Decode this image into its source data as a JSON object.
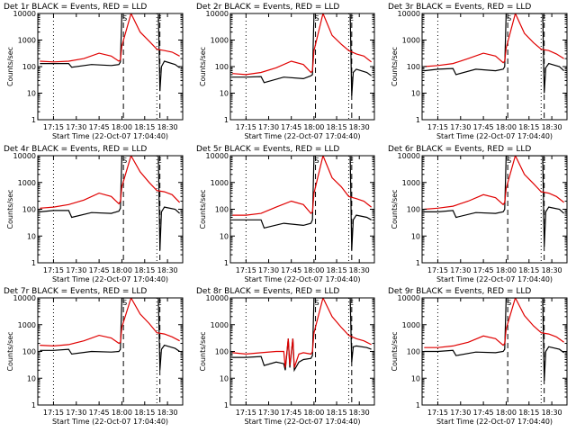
{
  "common": {
    "ylabel": "Counts/sec",
    "xlabel": "Start Time (22-Oct-07 17:04:40)",
    "yticks": [
      "1",
      "10",
      "100",
      "1000",
      "10000"
    ],
    "xticks": [
      "17:15",
      "17:30",
      "17:45",
      "18:00",
      "18:15",
      "18:30"
    ],
    "marker_S": "S",
    "marker_E": "E",
    "colors": {
      "events": "#000000",
      "lld": "#e00000",
      "frame": "#000000",
      "background": "#ffffff"
    }
  },
  "chart_data": [
    {
      "type": "line",
      "title": "Det 1r BLACK = Events, RED = LLD",
      "xlabel": "Start Time (22-Oct-07 17:04:40)",
      "ylabel": "Counts/sec",
      "ylim": [
        1,
        10000
      ],
      "yscale": "log",
      "xlim": [
        "17:04:40",
        "18:40"
      ],
      "markers": {
        "dotted": [
          "17:15",
          "18:23"
        ],
        "dashed": [
          "18:01",
          "18:25"
        ],
        "S": "18:01",
        "E": "18:25"
      },
      "series": [
        {
          "name": "Events",
          "x": [
            "17:06",
            "17:15",
            "17:25",
            "17:27",
            "17:40",
            "17:53",
            "17:58",
            "17:59",
            "18:00",
            "18:24",
            "18:25",
            "18:26",
            "18:28",
            "18:35",
            "18:38"
          ],
          "y": [
            130,
            130,
            130,
            95,
            120,
            110,
            120,
            150,
            10000,
            10000,
            12,
            100,
            160,
            120,
            90
          ]
        },
        {
          "name": "LLD",
          "x": [
            "17:06",
            "17:15",
            "17:25",
            "17:35",
            "17:45",
            "17:53",
            "17:58",
            "17:59",
            "18:00",
            "18:06",
            "18:12",
            "18:18",
            "18:23",
            "18:28",
            "18:33",
            "18:38"
          ],
          "y": [
            160,
            150,
            160,
            200,
            320,
            250,
            160,
            180,
            600,
            10000,
            2000,
            900,
            450,
            400,
            350,
            250
          ]
        }
      ]
    },
    {
      "type": "line",
      "title": "Det 2r BLACK = Events, RED = LLD",
      "xlabel": "Start Time (22-Oct-07 17:04:40)",
      "ylabel": "Counts/sec",
      "ylim": [
        1,
        10000
      ],
      "yscale": "log",
      "xlim": [
        "17:04:40",
        "18:40"
      ],
      "markers": {
        "dotted": [
          "17:15",
          "18:23"
        ],
        "dashed": [
          "18:01",
          "18:25"
        ],
        "S": "18:01",
        "E": "18:25"
      },
      "series": [
        {
          "name": "Events",
          "x": [
            "17:06",
            "17:15",
            "17:25",
            "17:27",
            "17:40",
            "17:53",
            "17:58",
            "17:59",
            "18:00",
            "18:24",
            "18:25",
            "18:26",
            "18:28",
            "18:35",
            "18:38"
          ],
          "y": [
            40,
            40,
            42,
            25,
            40,
            35,
            45,
            50,
            10000,
            10000,
            8,
            60,
            80,
            60,
            45
          ]
        },
        {
          "name": "LLD",
          "x": [
            "17:06",
            "17:15",
            "17:25",
            "17:35",
            "17:45",
            "17:53",
            "17:58",
            "17:59",
            "18:00",
            "18:06",
            "18:12",
            "18:18",
            "18:23",
            "18:28",
            "18:33",
            "18:38"
          ],
          "y": [
            55,
            50,
            60,
            90,
            160,
            120,
            60,
            70,
            400,
            10000,
            1500,
            700,
            400,
            300,
            250,
            150
          ]
        }
      ]
    },
    {
      "type": "line",
      "title": "Det 3r BLACK = Events, RED = LLD",
      "xlabel": "Start Time (22-Oct-07 17:04:40)",
      "ylabel": "Counts/sec",
      "ylim": [
        1,
        10000
      ],
      "yscale": "log",
      "xlim": [
        "17:04:40",
        "18:40"
      ],
      "markers": {
        "dotted": [
          "17:15",
          "18:23"
        ],
        "dashed": [
          "18:01",
          "18:25"
        ],
        "S": "18:01",
        "E": "18:25"
      },
      "series": [
        {
          "name": "Events",
          "x": [
            "17:06",
            "17:15",
            "17:25",
            "17:27",
            "17:40",
            "17:53",
            "17:58",
            "17:59",
            "18:00",
            "18:24",
            "18:25",
            "18:26",
            "18:28",
            "18:35",
            "18:38"
          ],
          "y": [
            70,
            80,
            85,
            50,
            80,
            70,
            80,
            100,
            10000,
            10000,
            10,
            90,
            130,
            100,
            70
          ]
        },
        {
          "name": "LLD",
          "x": [
            "17:06",
            "17:15",
            "17:25",
            "17:35",
            "17:45",
            "17:53",
            "17:58",
            "17:59",
            "18:00",
            "18:06",
            "18:12",
            "18:18",
            "18:23",
            "18:28",
            "18:33",
            "18:38"
          ],
          "y": [
            100,
            110,
            130,
            200,
            320,
            250,
            140,
            160,
            500,
            10000,
            1800,
            800,
            450,
            400,
            300,
            200
          ]
        }
      ]
    },
    {
      "type": "line",
      "title": "Det 4r BLACK = Events, RED = LLD",
      "xlabel": "Start Time (22-Oct-07 17:04:40)",
      "ylabel": "Counts/sec",
      "ylim": [
        1,
        10000
      ],
      "yscale": "log",
      "xlim": [
        "17:04:40",
        "18:40"
      ],
      "markers": {
        "dotted": [
          "17:15",
          "18:23"
        ],
        "dashed": [
          "18:01",
          "18:25"
        ],
        "S": "18:01",
        "E": "18:25"
      },
      "series": [
        {
          "name": "Events",
          "x": [
            "17:06",
            "17:15",
            "17:25",
            "17:27",
            "17:40",
            "17:53",
            "17:58",
            "17:59",
            "18:00",
            "18:24",
            "18:25",
            "18:26",
            "18:28",
            "18:35",
            "18:38"
          ],
          "y": [
            80,
            90,
            90,
            50,
            75,
            70,
            85,
            110,
            10000,
            10000,
            3,
            80,
            120,
            100,
            70
          ]
        },
        {
          "name": "LLD",
          "x": [
            "17:06",
            "17:15",
            "17:25",
            "17:35",
            "17:45",
            "17:53",
            "17:58",
            "17:59",
            "18:00",
            "18:06",
            "18:12",
            "18:18",
            "18:23",
            "18:28",
            "18:33",
            "18:38"
          ],
          "y": [
            110,
            120,
            150,
            220,
            400,
            300,
            160,
            200,
            700,
            10000,
            2500,
            1000,
            500,
            450,
            350,
            180
          ]
        }
      ]
    },
    {
      "type": "line",
      "title": "Det 5r BLACK = Events, RED = LLD",
      "xlabel": "Start Time (22-Oct-07 17:04:40)",
      "ylabel": "Counts/sec",
      "ylim": [
        1,
        10000
      ],
      "yscale": "log",
      "xlim": [
        "17:04:40",
        "18:40"
      ],
      "markers": {
        "dotted": [
          "17:15",
          "18:23"
        ],
        "dashed": [
          "18:01",
          "18:25"
        ],
        "S": "18:01",
        "E": "18:25"
      },
      "series": [
        {
          "name": "Events",
          "x": [
            "17:06",
            "17:15",
            "17:25",
            "17:27",
            "17:40",
            "17:53",
            "17:58",
            "17:59",
            "18:00",
            "18:24",
            "18:25",
            "18:26",
            "18:28",
            "18:35",
            "18:38"
          ],
          "y": [
            40,
            40,
            40,
            20,
            30,
            25,
            30,
            40,
            10000,
            10000,
            3,
            40,
            60,
            50,
            40
          ]
        },
        {
          "name": "LLD",
          "x": [
            "17:06",
            "17:15",
            "17:25",
            "17:35",
            "17:45",
            "17:53",
            "17:58",
            "17:59",
            "18:00",
            "18:06",
            "18:12",
            "18:18",
            "18:23",
            "18:28",
            "18:33",
            "18:38"
          ],
          "y": [
            60,
            60,
            70,
            120,
            200,
            150,
            70,
            80,
            400,
            10000,
            1500,
            700,
            300,
            250,
            200,
            120
          ]
        }
      ]
    },
    {
      "type": "line",
      "title": "Det 6r BLACK = Events, RED = LLD",
      "xlabel": "Start Time (22-Oct-07 17:04:40)",
      "ylabel": "Counts/sec",
      "ylim": [
        1,
        10000
      ],
      "yscale": "log",
      "xlim": [
        "17:04:40",
        "18:40"
      ],
      "markers": {
        "dotted": [
          "17:15",
          "18:23"
        ],
        "dashed": [
          "18:01",
          "18:25"
        ],
        "S": "18:01",
        "E": "18:25"
      },
      "series": [
        {
          "name": "Events",
          "x": [
            "17:06",
            "17:15",
            "17:25",
            "17:27",
            "17:40",
            "17:53",
            "17:58",
            "17:59",
            "18:00",
            "18:24",
            "18:25",
            "18:26",
            "18:28",
            "18:35",
            "18:38"
          ],
          "y": [
            80,
            80,
            90,
            50,
            75,
            70,
            80,
            100,
            10000,
            10000,
            4,
            80,
            120,
            100,
            70
          ]
        },
        {
          "name": "LLD",
          "x": [
            "17:06",
            "17:15",
            "17:25",
            "17:35",
            "17:45",
            "17:53",
            "17:58",
            "17:59",
            "18:00",
            "18:06",
            "18:12",
            "18:18",
            "18:23",
            "18:28",
            "18:33",
            "18:38"
          ],
          "y": [
            100,
            110,
            130,
            200,
            350,
            270,
            150,
            180,
            600,
            10000,
            2000,
            900,
            450,
            400,
            300,
            180
          ]
        }
      ]
    },
    {
      "type": "line",
      "title": "Det 7r BLACK = Events, RED = LLD",
      "xlabel": "Start Time (22-Oct-07 17:04:40)",
      "ylabel": "Counts/sec",
      "ylim": [
        1,
        10000
      ],
      "yscale": "log",
      "xlim": [
        "17:04:40",
        "18:40"
      ],
      "markers": {
        "dotted": [
          "17:15",
          "18:23"
        ],
        "dashed": [
          "18:01",
          "18:25"
        ],
        "S": "18:01",
        "E": "18:25"
      },
      "series": [
        {
          "name": "Events",
          "x": [
            "17:06",
            "17:15",
            "17:25",
            "17:27",
            "17:40",
            "17:53",
            "17:58",
            "17:59",
            "18:00",
            "18:24",
            "18:25",
            "18:26",
            "18:28",
            "18:35",
            "18:38"
          ],
          "y": [
            110,
            110,
            120,
            80,
            100,
            95,
            100,
            120,
            10000,
            10000,
            20,
            120,
            170,
            130,
            100
          ]
        },
        {
          "name": "LLD",
          "x": [
            "17:06",
            "17:15",
            "17:25",
            "17:35",
            "17:45",
            "17:53",
            "17:58",
            "17:59",
            "18:00",
            "18:06",
            "18:12",
            "18:18",
            "18:23",
            "18:28",
            "18:33",
            "18:38"
          ],
          "y": [
            170,
            160,
            180,
            250,
            400,
            320,
            200,
            220,
            800,
            10000,
            2500,
            1100,
            500,
            450,
            350,
            250
          ]
        }
      ]
    },
    {
      "type": "line",
      "title": "Det 8r BLACK = Events, RED = LLD",
      "xlabel": "Start Time (22-Oct-07 17:04:40)",
      "ylabel": "Counts/sec",
      "ylim": [
        1,
        10000
      ],
      "yscale": "log",
      "xlim": [
        "17:04:40",
        "18:40"
      ],
      "markers": {
        "dotted": [
          "17:15",
          "18:23"
        ],
        "dashed": [
          "18:01",
          "18:25"
        ],
        "S": "18:01",
        "E": "18:25"
      },
      "series": [
        {
          "name": "Events",
          "x": [
            "17:06",
            "17:15",
            "17:25",
            "17:27",
            "17:35",
            "17:40",
            "17:41",
            "17:43",
            "17:44",
            "17:46",
            "17:47",
            "17:50",
            "17:53",
            "17:58",
            "17:59",
            "18:00",
            "18:24",
            "18:25",
            "18:26",
            "18:28",
            "18:35",
            "18:38"
          ],
          "y": [
            60,
            60,
            65,
            30,
            40,
            35,
            20,
            300,
            25,
            300,
            20,
            40,
            50,
            55,
            70,
            10000,
            10000,
            40,
            150,
            160,
            140,
            120
          ]
        },
        {
          "name": "LLD",
          "x": [
            "17:06",
            "17:15",
            "17:25",
            "17:35",
            "17:40",
            "17:41",
            "17:43",
            "17:44",
            "17:46",
            "17:47",
            "17:50",
            "17:53",
            "17:58",
            "17:59",
            "18:00",
            "18:06",
            "18:12",
            "18:18",
            "18:23",
            "18:28",
            "18:33",
            "18:38"
          ],
          "y": [
            90,
            80,
            90,
            100,
            100,
            25,
            300,
            30,
            300,
            25,
            80,
            90,
            80,
            100,
            500,
            10000,
            2000,
            800,
            400,
            300,
            250,
            180
          ]
        }
      ]
    },
    {
      "type": "line",
      "title": "Det 9r BLACK = Events, RED = LLD",
      "xlabel": "Start Time (22-Oct-07 17:04:40)",
      "ylabel": "Counts/sec",
      "ylim": [
        1,
        10000
      ],
      "yscale": "log",
      "xlim": [
        "17:04:40",
        "18:40"
      ],
      "markers": {
        "dotted": [
          "17:15",
          "18:23"
        ],
        "dashed": [
          "18:01",
          "18:25"
        ],
        "S": "18:01",
        "E": "18:25"
      },
      "series": [
        {
          "name": "Events",
          "x": [
            "17:06",
            "17:15",
            "17:25",
            "17:27",
            "17:40",
            "17:53",
            "17:58",
            "17:59",
            "18:00",
            "18:24",
            "18:25",
            "18:26",
            "18:28",
            "18:35",
            "18:38"
          ],
          "y": [
            100,
            100,
            110,
            70,
            95,
            90,
            100,
            120,
            10000,
            10000,
            8,
            100,
            150,
            120,
            90
          ]
        },
        {
          "name": "LLD",
          "x": [
            "17:06",
            "17:15",
            "17:25",
            "17:35",
            "17:45",
            "17:53",
            "17:58",
            "17:59",
            "18:00",
            "18:06",
            "18:12",
            "18:18",
            "18:23",
            "18:28",
            "18:33",
            "18:38"
          ],
          "y": [
            140,
            140,
            160,
            220,
            380,
            300,
            170,
            200,
            700,
            10000,
            2200,
            900,
            500,
            450,
            350,
            220
          ]
        }
      ]
    }
  ]
}
